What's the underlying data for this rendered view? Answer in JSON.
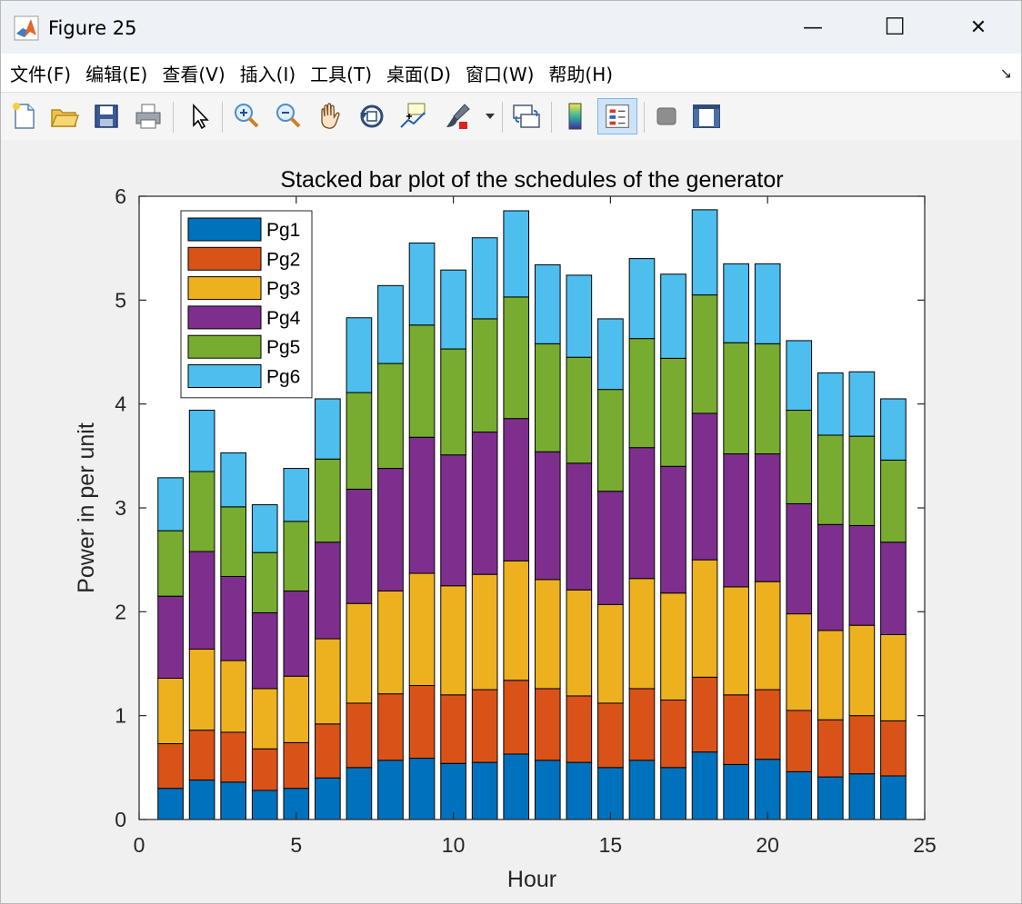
{
  "window": {
    "title": "Figure 25",
    "minimize_glyph": "—",
    "maximize_glyph": "☐",
    "close_glyph": "✕"
  },
  "menubar": {
    "items": [
      {
        "label": "文件(F)"
      },
      {
        "label": "编辑(E)"
      },
      {
        "label": "查看(V)"
      },
      {
        "label": "插入(I)"
      },
      {
        "label": "工具(T)"
      },
      {
        "label": "桌面(D)"
      },
      {
        "label": "窗口(W)"
      },
      {
        "label": "帮助(H)"
      }
    ],
    "overflow_glyph": "↘"
  },
  "toolbar": {
    "icons": [
      "new-figure-icon",
      "open-file-icon",
      "save-icon",
      "print-icon",
      "pointer-icon",
      "zoom-in-icon",
      "zoom-out-icon",
      "pan-icon",
      "rotate-3d-icon",
      "data-cursor-icon",
      "brush-icon",
      "brush-dropdown-icon",
      "link-plot-icon",
      "colorbar-icon",
      "legend-icon",
      "hide-plot-tools-icon",
      "show-plot-tools-icon"
    ]
  },
  "chart_data": {
    "type": "bar",
    "stacked": true,
    "title": "Stacked bar plot of the schedules of the generator",
    "xlabel": "Hour",
    "ylabel": "Power in per unit",
    "xlim": [
      0,
      25
    ],
    "ylim": [
      0,
      6
    ],
    "xticks": [
      "0",
      "5",
      "10",
      "15",
      "20",
      "25"
    ],
    "yticks": [
      "0",
      "1",
      "2",
      "3",
      "4",
      "5",
      "6"
    ],
    "legend_position": "top-left",
    "grid": false,
    "categories": [
      1,
      2,
      3,
      4,
      5,
      6,
      7,
      8,
      9,
      10,
      11,
      12,
      13,
      14,
      15,
      16,
      17,
      18,
      19,
      20,
      21,
      22,
      23,
      24
    ],
    "series": [
      {
        "name": "Pg1",
        "color": "#0072BD",
        "values": [
          0.3,
          0.38,
          0.36,
          0.28,
          0.3,
          0.4,
          0.5,
          0.57,
          0.59,
          0.54,
          0.55,
          0.63,
          0.57,
          0.55,
          0.5,
          0.57,
          0.5,
          0.65,
          0.53,
          0.58,
          0.46,
          0.41,
          0.44,
          0.42
        ]
      },
      {
        "name": "Pg2",
        "color": "#D95319",
        "values": [
          0.43,
          0.48,
          0.48,
          0.4,
          0.44,
          0.52,
          0.62,
          0.64,
          0.7,
          0.66,
          0.7,
          0.71,
          0.69,
          0.64,
          0.62,
          0.69,
          0.65,
          0.72,
          0.67,
          0.67,
          0.59,
          0.55,
          0.56,
          0.53
        ]
      },
      {
        "name": "Pg3",
        "color": "#EDB120",
        "values": [
          0.63,
          0.78,
          0.69,
          0.58,
          0.64,
          0.82,
          0.96,
          0.99,
          1.08,
          1.05,
          1.11,
          1.15,
          1.05,
          1.02,
          0.95,
          1.06,
          1.03,
          1.13,
          1.04,
          1.04,
          0.93,
          0.86,
          0.87,
          0.83
        ]
      },
      {
        "name": "Pg4",
        "color": "#7E2F8E",
        "values": [
          0.79,
          0.94,
          0.81,
          0.73,
          0.82,
          0.93,
          1.1,
          1.18,
          1.31,
          1.26,
          1.37,
          1.37,
          1.23,
          1.22,
          1.09,
          1.26,
          1.22,
          1.41,
          1.28,
          1.23,
          1.06,
          1.02,
          0.96,
          0.89
        ]
      },
      {
        "name": "Pg5",
        "color": "#77AC30",
        "values": [
          0.63,
          0.77,
          0.67,
          0.58,
          0.67,
          0.8,
          0.93,
          1.01,
          1.08,
          1.02,
          1.09,
          1.17,
          1.04,
          1.02,
          0.98,
          1.05,
          1.04,
          1.14,
          1.07,
          1.06,
          0.9,
          0.86,
          0.86,
          0.79
        ]
      },
      {
        "name": "Pg6",
        "color": "#4DBEEE",
        "values": [
          0.51,
          0.59,
          0.52,
          0.46,
          0.51,
          0.58,
          0.72,
          0.75,
          0.79,
          0.76,
          0.78,
          0.83,
          0.76,
          0.79,
          0.68,
          0.77,
          0.81,
          0.82,
          0.76,
          0.77,
          0.67,
          0.6,
          0.62,
          0.59
        ]
      }
    ]
  }
}
